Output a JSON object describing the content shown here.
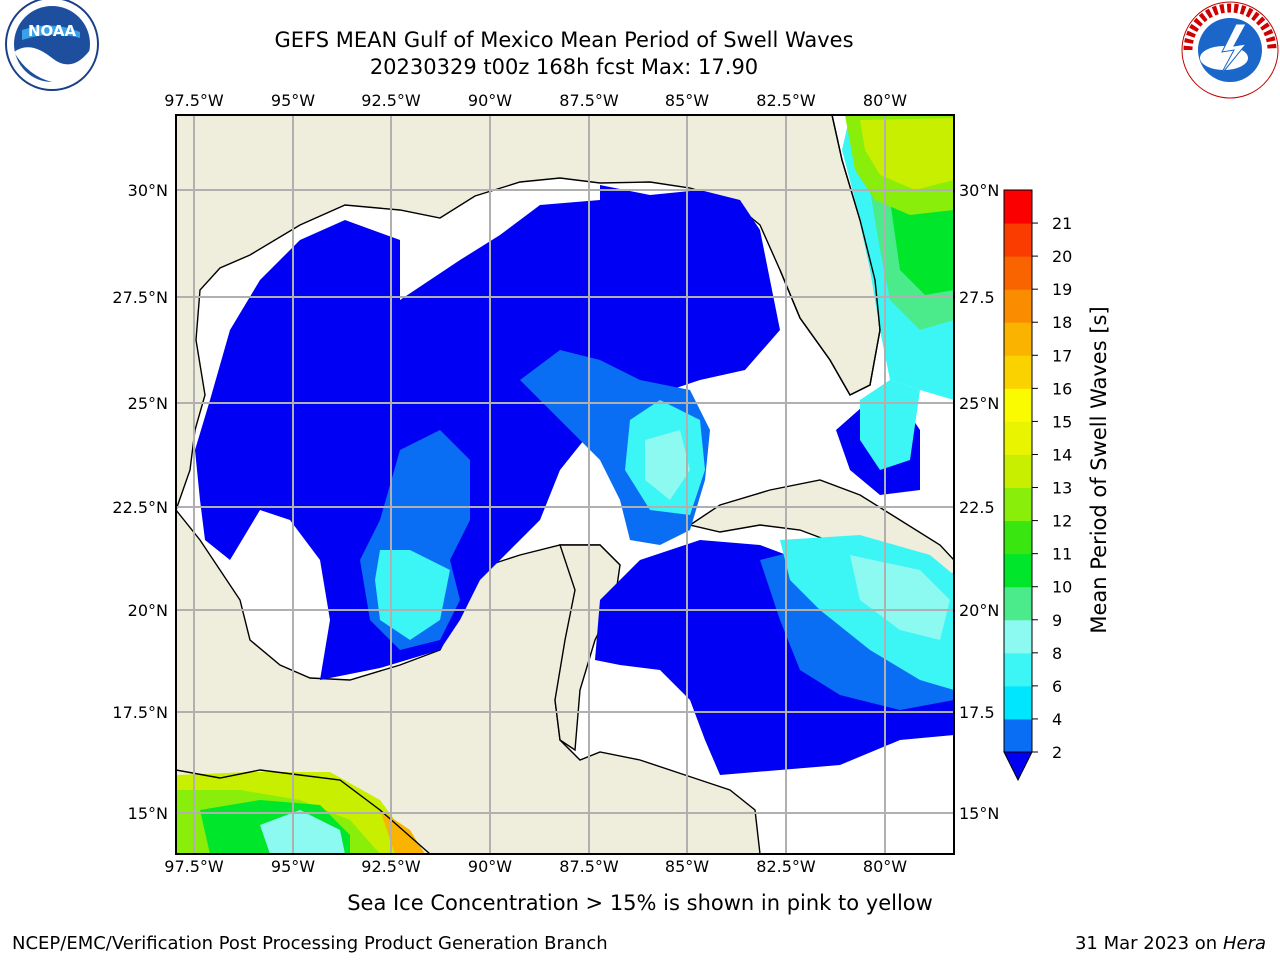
{
  "header": {
    "title_line1": "GEFS MEAN Gulf of Mexico Mean Period of Swell Waves",
    "title_line2": "20230329 t00z 168h fcst   Max: 17.90"
  },
  "logos": {
    "left": {
      "icon": "noaa-logo",
      "text": "NOAA"
    },
    "right": {
      "icon": "nws-logo",
      "text": "NATIONAL WEATHER SERVICE"
    }
  },
  "map": {
    "lon_labels": [
      "97.5°W",
      "95°W",
      "92.5°W",
      "90°W",
      "87.5°W",
      "85°W",
      "82.5°W",
      "80°W"
    ],
    "lat_labels_left": [
      "30°N",
      "27.5°N",
      "25°N",
      "22.5°N",
      "20°N",
      "17.5°N",
      "15°N"
    ],
    "lat_labels_right": [
      "30°N",
      "27.5",
      "25°N",
      "22.5",
      "20°N",
      "17.5",
      "15°N"
    ],
    "land_color": "#efeedc",
    "grid_color": "#b0b0b0"
  },
  "colorbar": {
    "label": "Mean Period of Swell Waves [s]",
    "ticks": [
      "2",
      "4",
      "6",
      "8",
      "9",
      "10",
      "11",
      "12",
      "13",
      "14",
      "15",
      "16",
      "17",
      "18",
      "19",
      "20",
      "21"
    ],
    "colors": [
      "#0a6ef5",
      "#00e6ff",
      "#3cf5f5",
      "#8cfaf0",
      "#4bea8a",
      "#00e62b",
      "#3ae60f",
      "#88ee0a",
      "#c8ee00",
      "#e8f400",
      "#fafa00",
      "#fad200",
      "#fab400",
      "#fa8c00",
      "#fa6400",
      "#fa3c00",
      "#fa0000"
    ],
    "under_color": "#0000f5"
  },
  "footer": {
    "note": "Sea Ice Concentration > 15% is shown in pink to yellow",
    "credit": "NCEP/EMC/Verification Post Processing Product Generation Branch",
    "date": "31 Mar 2023 on",
    "host": "Hera"
  }
}
